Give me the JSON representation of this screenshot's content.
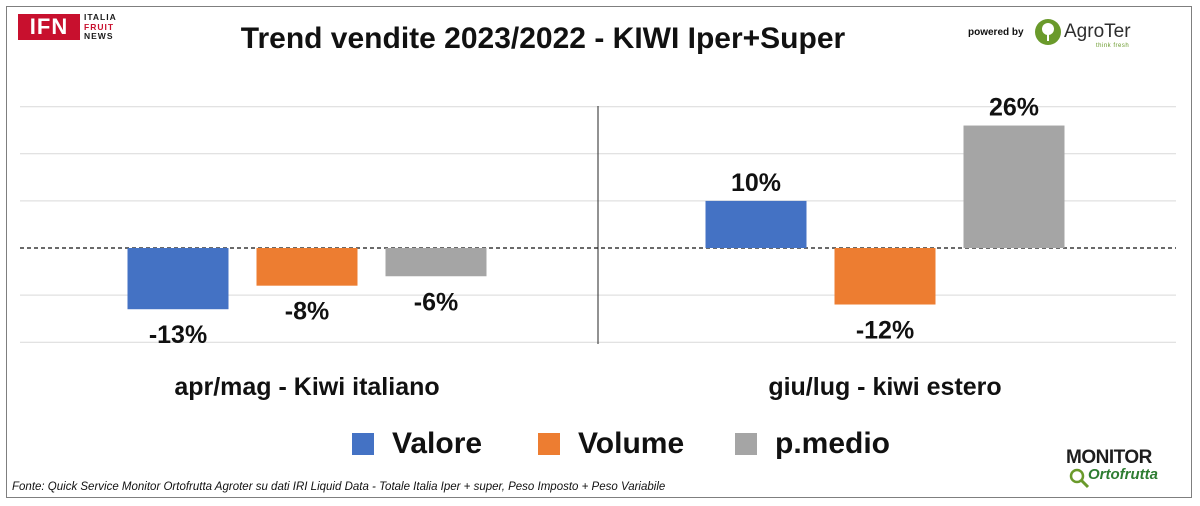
{
  "branding": {
    "ifn_mark": "IFN",
    "ifn_lines": [
      "ITALIA",
      "FRUIT",
      "NEWS"
    ],
    "powered_by": "powered by",
    "agroter_name": "AgroTer",
    "agroter_tagline": "think fresh",
    "monitor_top": "MONITOR",
    "monitor_bottom": "Ortofrutta"
  },
  "chart_data": {
    "type": "bar",
    "title": "Trend vendite 2023/2022 - KIWI Iper+Super",
    "categories": [
      "apr/mag - Kiwi italiano",
      "giu/lug - kiwi estero"
    ],
    "series": [
      {
        "name": "Valore",
        "values": [
          -13,
          10
        ],
        "labels": [
          "-13%",
          "10%"
        ],
        "color": "#4472c4"
      },
      {
        "name": "Volume",
        "values": [
          -8,
          -12
        ],
        "labels": [
          "-8%",
          "-12%"
        ],
        "color": "#ed7d31"
      },
      {
        "name": "p.medio",
        "values": [
          -6,
          26
        ],
        "labels": [
          "-6%",
          "26%"
        ],
        "color": "#a5a5a5"
      }
    ],
    "ylim": [
      -20,
      30
    ],
    "grid": true,
    "zero_line": "dashed",
    "legend": "bottom"
  },
  "source_note": "Fonte: Quick Service Monitor Ortofrutta Agroter su dati IRI Liquid Data - Totale Italia Iper + super, Peso Imposto + Peso Variabile"
}
